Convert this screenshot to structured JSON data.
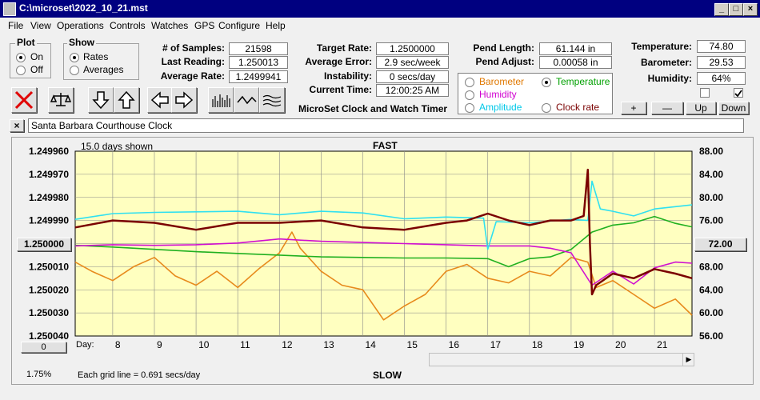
{
  "window": {
    "title": "C:\\microset\\2022_10_21.mst"
  },
  "menu": [
    "File",
    "View",
    "Operations",
    "Controls",
    "Watches",
    "GPS",
    "Configure",
    "Help"
  ],
  "plot": {
    "title": "Plot",
    "options": [
      "On",
      "Off"
    ],
    "selected": "On"
  },
  "show": {
    "title": "Show",
    "options": [
      "Rates",
      "Averages"
    ],
    "selected": "Rates"
  },
  "stats": {
    "samples_label": "# of Samples:",
    "samples": "21598",
    "last_label": "Last Reading:",
    "last": "1.250013",
    "avg_label": "Average Rate:",
    "avg": "1.2499941",
    "target_label": "Target Rate:",
    "target": "1.2500000",
    "avgerr_label": "Average Error:",
    "avgerr": "2.9 sec/week",
    "instab_label": "Instability:",
    "instab": "0 secs/day",
    "time_label": "Current Time:",
    "time": "12:00:25 AM",
    "pendlen_label": "Pend Length:",
    "pendlen": "61.144 in",
    "pendadj_label": "Pend Adjust:",
    "pendadj": "0.00058 in",
    "temp_label": "Temperature:",
    "temp": "74.80",
    "baro_label": "Barometer:",
    "baro": "29.53",
    "hum_label": "Humidity:",
    "hum": "64%"
  },
  "app_caption": "MicroSet Clock and Watch Timer",
  "sensor_select": {
    "barometer": "Barometer",
    "temperature": "Temperature",
    "humidity": "Humidity",
    "amplitude": "Amplitude",
    "clockrate": "Clock rate",
    "selected": "Temperature",
    "colors": {
      "barometer": "#e07800",
      "temperature": "#00a000",
      "humidity": "#d000d0",
      "amplitude": "#00c8e8",
      "clockrate": "#7a0000"
    }
  },
  "scale_buttons": {
    "plus": "+",
    "minus": "—",
    "up": "Up",
    "down": "Down"
  },
  "toolbar_icons": [
    "clear-icon",
    "balance-icon",
    "arrow-down-icon",
    "arrow-up-icon",
    "arrow-left-icon",
    "arrow-right-icon",
    "bar-chart-icon",
    "wave-icon",
    "multi-wave-icon"
  ],
  "clock_name": "Santa Barbara Courthouse Clock",
  "close_x": "×",
  "chart": {
    "days_shown": "15.0 days shown",
    "top_label": "FAST",
    "bottom_label": "SLOW",
    "grid_note": "Each grid line = 0.691 secs/day",
    "percent": "1.75%",
    "day_label": "Day:",
    "left_button": "0"
  },
  "chart_data": {
    "type": "line",
    "x_ticks": [
      8,
      9,
      10,
      11,
      12,
      13,
      14,
      15,
      16,
      17,
      18,
      19,
      20,
      21
    ],
    "xlim": [
      7.1,
      21.9
    ],
    "y_left_ticks": [
      "1.249960",
      "1.249970",
      "1.249980",
      "1.249990",
      "1.250000",
      "1.250010",
      "1.250020",
      "1.250030",
      "1.250040"
    ],
    "y_left_range": [
      1.24996,
      1.25004
    ],
    "y_left_highlight": "1.250000",
    "y_right_ticks": [
      "88.00",
      "84.00",
      "80.00",
      "76.00",
      "72.00",
      "68.00",
      "64.00",
      "60.00",
      "56.00"
    ],
    "y_right_range": [
      88,
      56
    ],
    "y_right_highlight": "72.00",
    "grid": true,
    "series": [
      {
        "key": "barometer",
        "color": "#e78a1c",
        "x": [
          7.1,
          7.5,
          8.0,
          8.5,
          9.0,
          9.5,
          10.0,
          10.5,
          11.0,
          11.5,
          12.0,
          12.3,
          12.5,
          13.0,
          13.5,
          14.0,
          14.5,
          15.0,
          15.5,
          16.0,
          16.5,
          17.0,
          17.5,
          18.0,
          18.5,
          19.0,
          19.4,
          19.6,
          20.0,
          20.5,
          21.0,
          21.5,
          21.9
        ],
        "y": [
          1.250008,
          1.250012,
          1.250016,
          1.25001,
          1.250006,
          1.250014,
          1.250018,
          1.250012,
          1.250019,
          1.250011,
          1.250004,
          1.249995,
          1.250002,
          1.250012,
          1.250018,
          1.25002,
          1.250033,
          1.250027,
          1.250022,
          1.250012,
          1.250009,
          1.250015,
          1.250017,
          1.250012,
          1.250014,
          1.250006,
          1.250008,
          1.250019,
          1.250016,
          1.250022,
          1.250028,
          1.250024,
          1.250031
        ]
      },
      {
        "key": "temperature",
        "color": "#20b020",
        "x": [
          7.1,
          8.0,
          9.0,
          10.0,
          11.0,
          12.0,
          13.0,
          14.0,
          15.0,
          16.0,
          17.0,
          17.5,
          18.0,
          18.5,
          19.0,
          19.5,
          20.0,
          20.5,
          21.0,
          21.5,
          21.9
        ],
        "y": [
          71.7,
          71.4,
          71.0,
          70.6,
          70.3,
          70.0,
          69.7,
          69.6,
          69.5,
          69.5,
          69.4,
          68.0,
          69.4,
          69.7,
          71.0,
          74.0,
          75.2,
          75.6,
          76.7,
          75.5,
          74.9
        ]
      },
      {
        "key": "humidity",
        "color": "#d010d0",
        "x": [
          7.1,
          8.0,
          9.0,
          10.0,
          11.0,
          12.0,
          13.0,
          14.0,
          15.0,
          16.0,
          17.0,
          18.0,
          18.5,
          19.0,
          19.5,
          20.0,
          20.5,
          21.0,
          21.5,
          21.9
        ],
        "y": [
          71.6,
          71.8,
          71.7,
          71.8,
          72.1,
          72.8,
          72.4,
          72.2,
          72.0,
          71.8,
          71.6,
          71.6,
          71.2,
          70.4,
          64.8,
          67.2,
          65.0,
          67.8,
          68.8,
          68.6
        ]
      },
      {
        "key": "amplitude",
        "color": "#30e0f0",
        "x": [
          7.1,
          8.0,
          9.0,
          10.0,
          11.0,
          12.0,
          13.0,
          14.0,
          15.0,
          16.0,
          16.9,
          17.0,
          17.2,
          18.0,
          19.0,
          19.4,
          19.5,
          19.7,
          20.0,
          20.5,
          21.0,
          21.9
        ],
        "y": [
          76.2,
          77.2,
          77.4,
          77.5,
          77.6,
          77.0,
          77.6,
          77.3,
          76.3,
          76.6,
          76.4,
          71.0,
          75.8,
          75.6,
          76.2,
          76.0,
          82.8,
          78.0,
          77.6,
          76.8,
          78.0,
          78.7
        ]
      },
      {
        "key": "clockrate",
        "color": "#7a0000",
        "x": [
          7.1,
          8.0,
          9.0,
          10.0,
          11.0,
          12.0,
          13.0,
          14.0,
          15.0,
          16.0,
          16.5,
          17.0,
          17.5,
          18.0,
          18.5,
          19.0,
          19.3,
          19.4,
          19.45,
          19.5,
          19.6,
          20.0,
          20.5,
          21.0,
          21.5,
          21.9
        ],
        "y": [
          1.249993,
          1.24999,
          1.249991,
          1.249994,
          1.249991,
          1.249991,
          1.24999,
          1.249993,
          1.249994,
          1.249991,
          1.24999,
          1.249987,
          1.24999,
          1.249992,
          1.24999,
          1.24999,
          1.249988,
          1.249968,
          1.25,
          1.250022,
          1.250018,
          1.250013,
          1.250015,
          1.250011,
          1.250013,
          1.250015
        ]
      }
    ]
  }
}
